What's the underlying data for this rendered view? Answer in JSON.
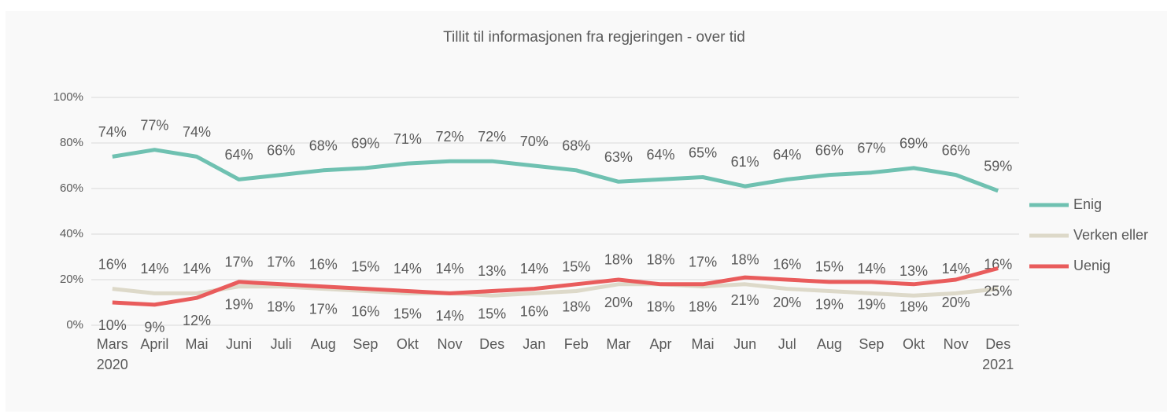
{
  "chart_data": {
    "type": "line",
    "title": "Tillit til informasjonen fra regjeringen - over tid",
    "categories": [
      [
        "Mars",
        "2020"
      ],
      [
        "April"
      ],
      [
        "Mai"
      ],
      [
        "Juni"
      ],
      [
        "Juli"
      ],
      [
        "Aug"
      ],
      [
        "Sep"
      ],
      [
        "Okt"
      ],
      [
        "Nov"
      ],
      [
        "Des"
      ],
      [
        "Jan"
      ],
      [
        "Feb"
      ],
      [
        "Mar"
      ],
      [
        "Apr"
      ],
      [
        "Mai"
      ],
      [
        "Jun"
      ],
      [
        "Jul"
      ],
      [
        "Aug"
      ],
      [
        "Sep"
      ],
      [
        "Okt"
      ],
      [
        "Nov"
      ],
      [
        "Des",
        "2021"
      ]
    ],
    "series": [
      {
        "name": "Enig",
        "color": "#6fc1b1",
        "label_side": "above",
        "values": [
          74,
          77,
          74,
          64,
          66,
          68,
          69,
          71,
          72,
          72,
          70,
          68,
          63,
          64,
          65,
          61,
          64,
          66,
          67,
          69,
          66,
          59
        ],
        "value_labels": [
          "74%",
          "77%",
          "74%",
          "64%",
          "66%",
          "68%",
          "69%",
          "71%",
          "72%",
          "72%",
          "70%",
          "68%",
          "63%",
          "64%",
          "65%",
          "61%",
          "64%",
          "66%",
          "67%",
          "69%",
          "66%",
          "59%"
        ]
      },
      {
        "name": "Verken eller",
        "color": "#ddd9c9",
        "label_side": "above",
        "values": [
          16,
          14,
          14,
          17,
          17,
          16,
          15,
          14,
          14,
          13,
          14,
          15,
          18,
          18,
          17,
          18,
          16,
          15,
          14,
          13,
          14,
          16
        ],
        "value_labels": [
          "16%",
          "14%",
          "14%",
          "17%",
          "17%",
          "16%",
          "15%",
          "14%",
          "14%",
          "13%",
          "14%",
          "15%",
          "18%",
          "18%",
          "17%",
          "18%",
          "16%",
          "15%",
          "14%",
          "13%",
          "14%",
          "16%"
        ]
      },
      {
        "name": "Uenig",
        "color": "#e95c5c",
        "label_side": "below",
        "values": [
          10,
          9,
          12,
          19,
          18,
          17,
          16,
          15,
          14,
          15,
          16,
          18,
          20,
          18,
          18,
          21,
          20,
          19,
          19,
          18,
          20,
          25
        ],
        "value_labels": [
          "10%",
          "9%",
          "12%",
          "19%",
          "18%",
          "17%",
          "16%",
          "15%",
          "14%",
          "15%",
          "16%",
          "18%",
          "20%",
          "18%",
          "18%",
          "21%",
          "20%",
          "19%",
          "19%",
          "18%",
          "20%",
          "25%"
        ]
      }
    ],
    "ylim": [
      0,
      100
    ],
    "yticks": [
      {
        "value": 0,
        "label": "0%"
      },
      {
        "value": 20,
        "label": "20%"
      },
      {
        "value": 40,
        "label": "40%"
      },
      {
        "value": 60,
        "label": "60%"
      },
      {
        "value": 80,
        "label": "80%"
      },
      {
        "value": 100,
        "label": "100%"
      }
    ],
    "grid": true,
    "legend": "right"
  }
}
